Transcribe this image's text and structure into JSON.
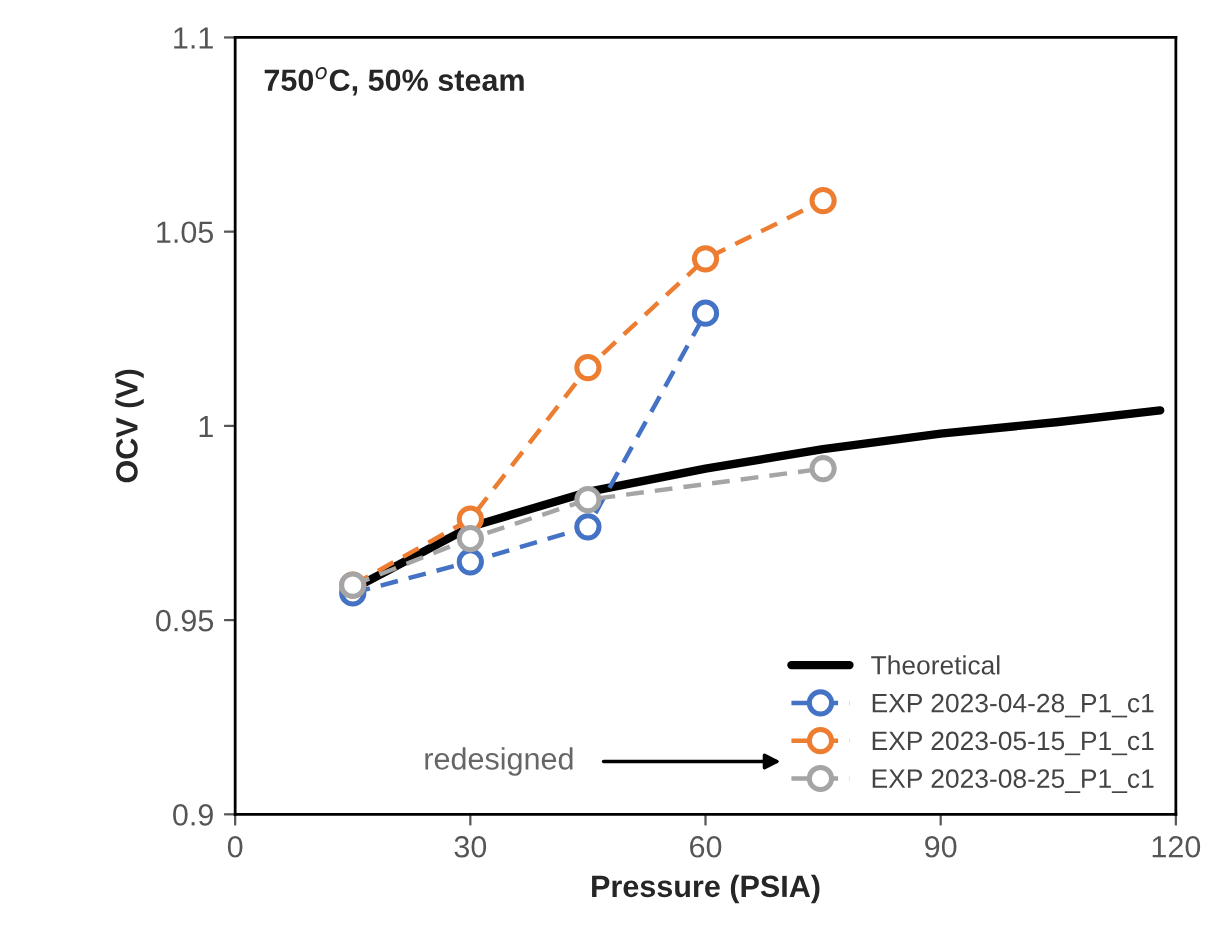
{
  "chart_data": {
    "type": "line",
    "xlabel": "Pressure (PSIA)",
    "ylabel": "OCV (V)",
    "annotations": [
      "750$^{o}$C, 50% steam",
      "redesigned"
    ],
    "xlim": [
      0,
      120
    ],
    "xticks": [
      0,
      30,
      60,
      90,
      120
    ],
    "ylim": [
      0.9,
      1.1
    ],
    "yticks": [
      0.9,
      0.95,
      1,
      1.05,
      1.1
    ],
    "grid": false,
    "legend": "bottom right",
    "series": [
      {
        "name": "Theoretical",
        "color": "#000000",
        "marker": "none",
        "line_style": "solid",
        "x": [
          15,
          30,
          45,
          60,
          75,
          90,
          105,
          118
        ],
        "values": [
          0.958,
          0.974,
          0.983,
          0.989,
          0.994,
          0.998,
          1.001,
          1.004
        ]
      },
      {
        "name": "EXP 2023-04-28_P1_c1",
        "color": "#4472c4",
        "marker": "circle",
        "line_style": "dashed",
        "x": [
          15,
          30,
          45,
          60
        ],
        "values": [
          0.957,
          0.965,
          0.974,
          1.029
        ]
      },
      {
        "name": "EXP 2023-05-15_P1_c1",
        "color": "#ed7d31",
        "marker": "circle",
        "line_style": "dashed",
        "x": [
          15,
          30,
          45,
          60,
          75
        ],
        "values": [
          0.959,
          0.976,
          1.015,
          1.043,
          1.058
        ]
      },
      {
        "name": "EXP 2023-08-25_P1_c1",
        "color": "#a5a5a5",
        "marker": "circle",
        "line_style": "dashed",
        "x": [
          15,
          30,
          45,
          75
        ],
        "values": [
          0.959,
          0.971,
          0.981,
          0.989
        ]
      }
    ]
  }
}
